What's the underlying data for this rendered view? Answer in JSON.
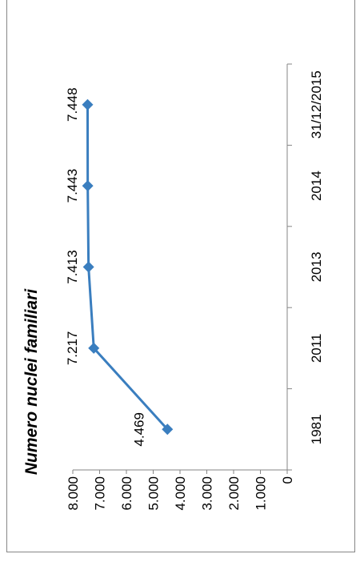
{
  "chart_data": {
    "type": "line",
    "title": "Numero nuclei familiari",
    "categories": [
      "1981",
      "2011",
      "2013",
      "2014",
      "31/12/2015"
    ],
    "series": [
      {
        "values": [
          4469,
          7217,
          7413,
          7443,
          7448
        ],
        "color": "#3a7ebf"
      }
    ],
    "data_labels": [
      "4.469",
      "7.217",
      "7.413",
      "7.443",
      "7.448"
    ],
    "y_ticks": [
      "0",
      "1.000",
      "2.000",
      "3.000",
      "4.000",
      "5.000",
      "6.000",
      "7.000",
      "8.000"
    ],
    "ylim": [
      0,
      8000
    ],
    "orientation": "rotated-90-clockwise",
    "grid": false,
    "legend": "none"
  }
}
